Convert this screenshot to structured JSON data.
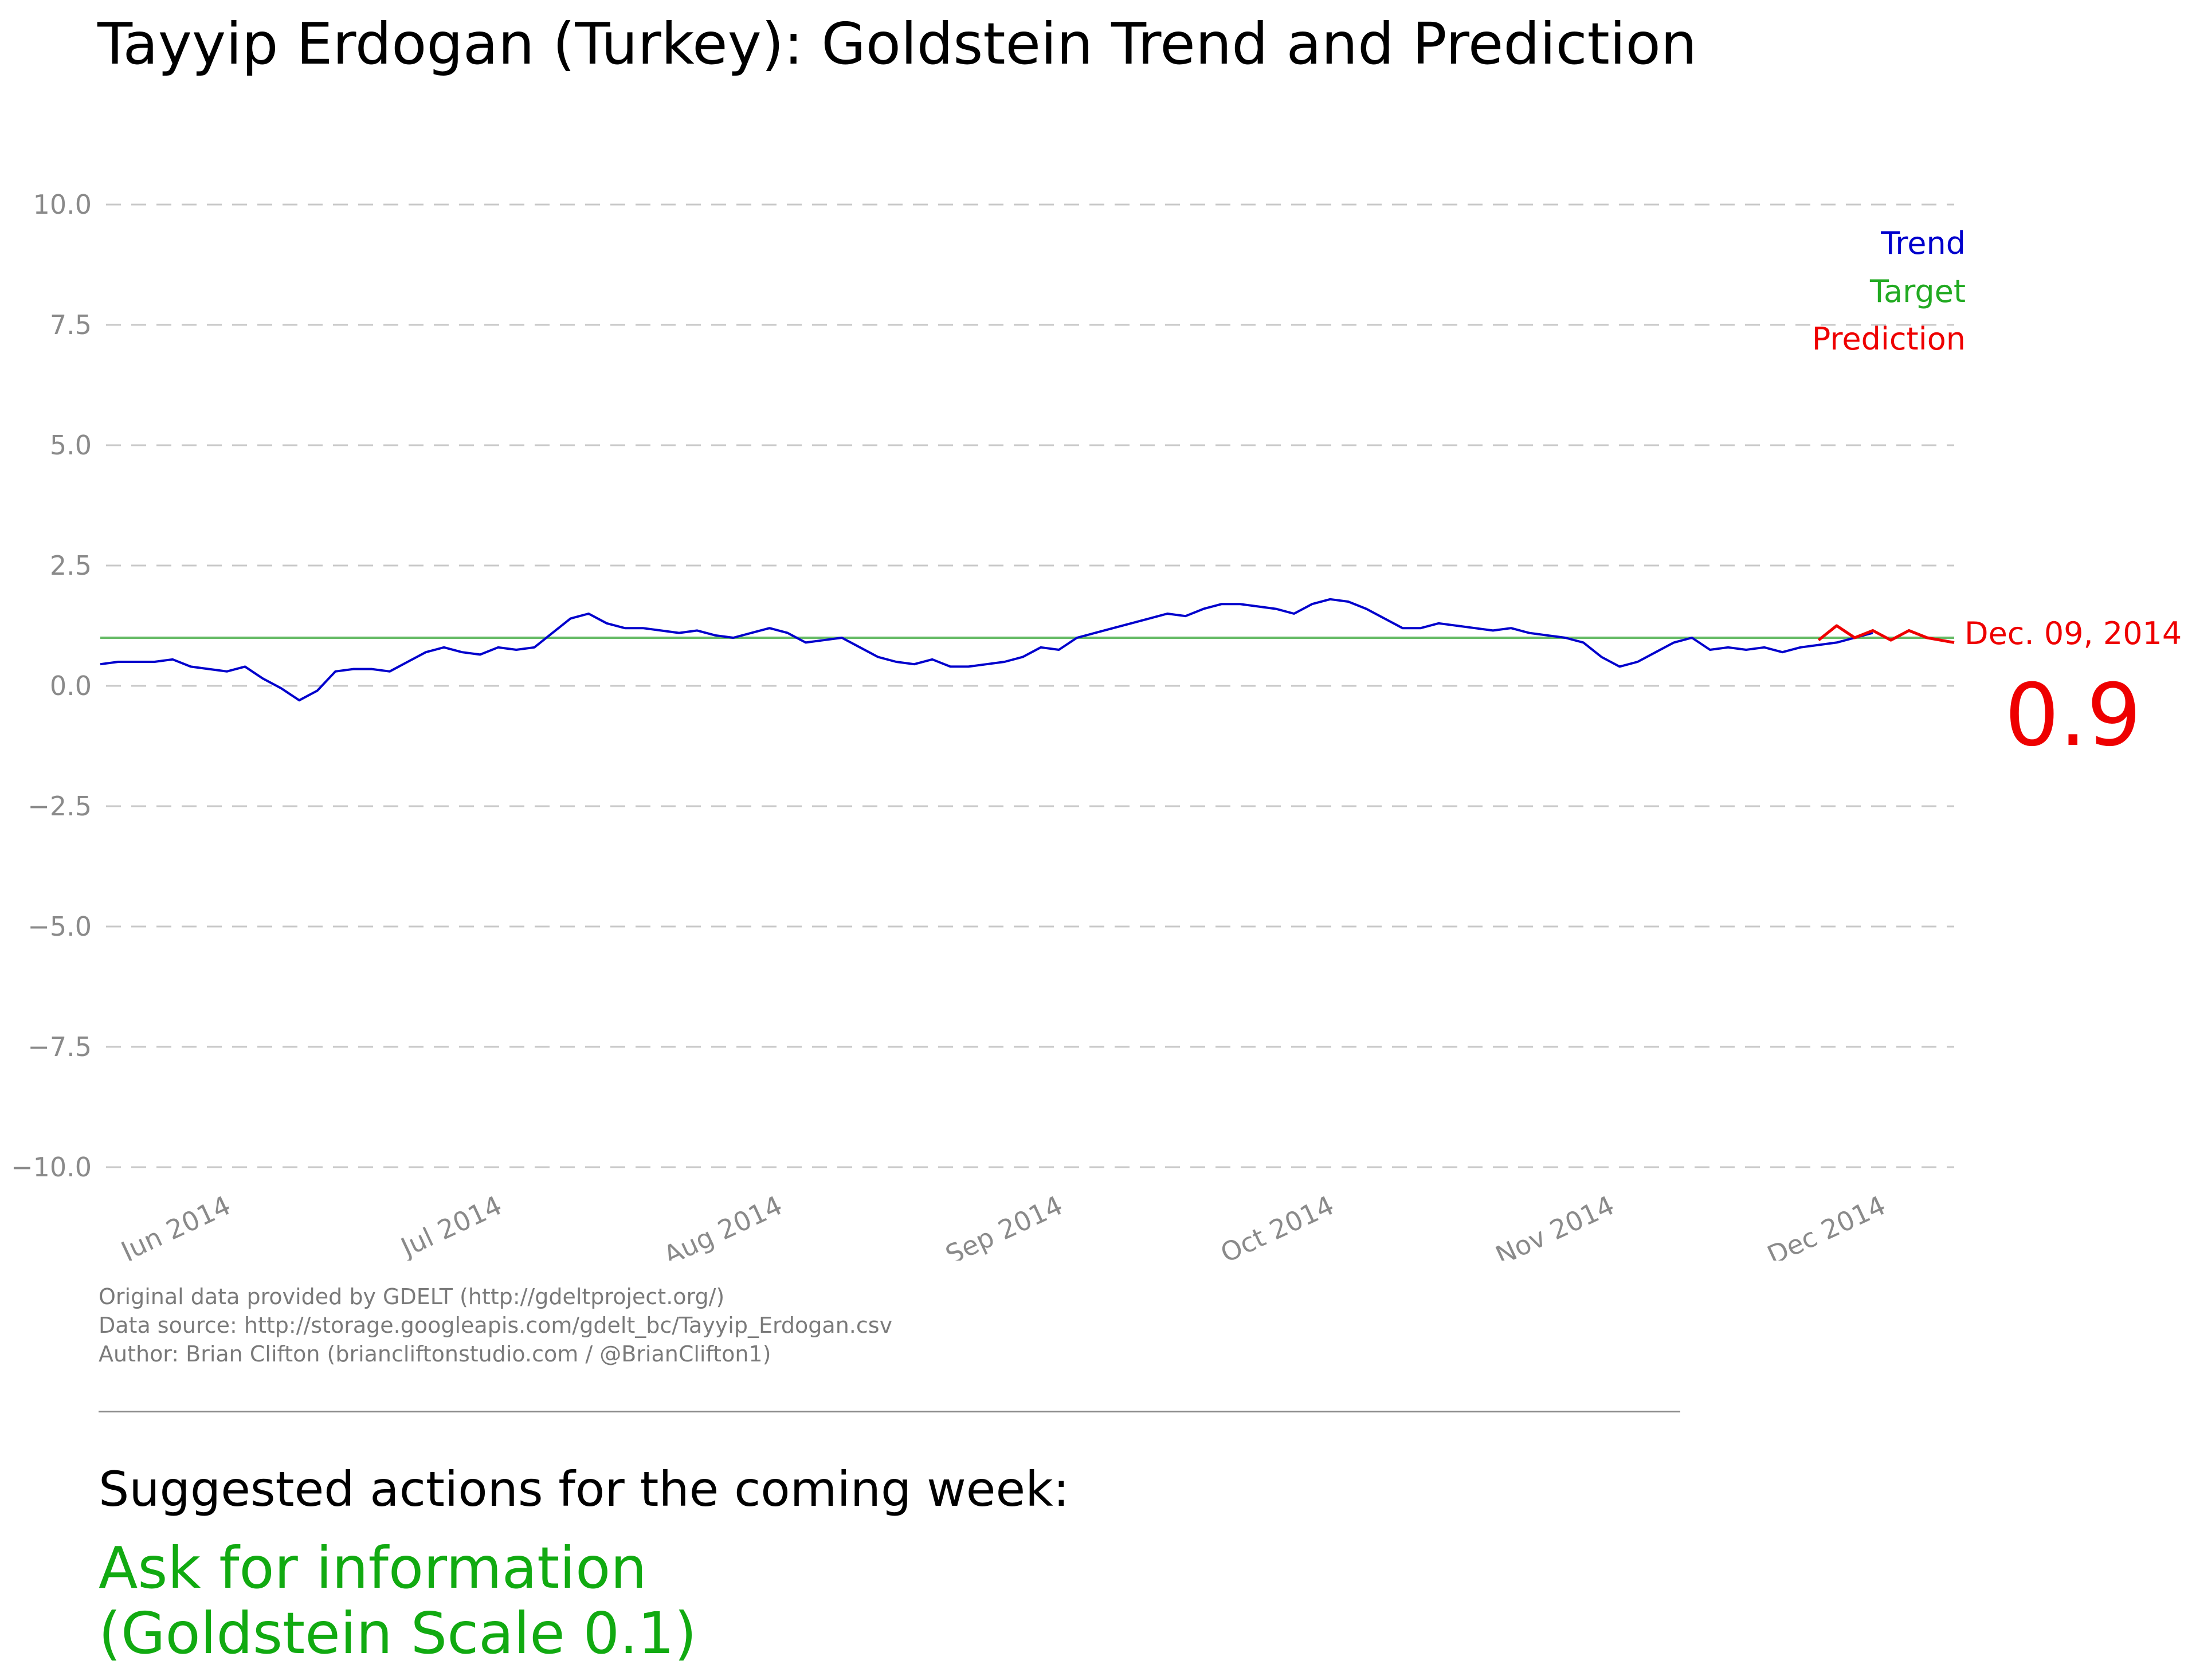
{
  "title": "Tayyip Erdogan (Turkey): Goldstein Trend and Prediction",
  "colors": {
    "trend": "#0000cc",
    "target": "#66bb66",
    "prediction": "#ee0000",
    "action": "#11aa11",
    "grid": "#c8c8c8",
    "tick": "#8a8a8a"
  },
  "chart_data": {
    "type": "line",
    "title": "Tayyip Erdogan (Turkey): Goldstein Trend and Prediction",
    "xlabel": "",
    "ylabel": "",
    "ylim": [
      -10,
      10
    ],
    "yticks": [
      10,
      7.5,
      5,
      2.5,
      0,
      -2.5,
      -5,
      -7.5,
      -10
    ],
    "ytick_labels": [
      "10.0",
      "7.5",
      "5.0",
      "2.5",
      "0.0",
      "−2.5",
      "−5.0",
      "−7.5",
      "−10.0"
    ],
    "xlim": [
      "2014-05-18",
      "2014-12-09"
    ],
    "xticks": [
      "2014-06-01",
      "2014-07-01",
      "2014-08-01",
      "2014-09-01",
      "2014-10-01",
      "2014-11-01",
      "2014-12-01"
    ],
    "xtick_labels": [
      "Jun 2014",
      "Jul 2014",
      "Aug 2014",
      "Sep 2014",
      "Oct 2014",
      "Nov 2014",
      "Dec 2014"
    ],
    "grid": "horizontal dashed",
    "legend_position": "top-right",
    "legend": [
      "Trend",
      "Target",
      "Prediction"
    ],
    "series": [
      {
        "name": "Trend",
        "x": [
          "2014-05-18",
          "2014-05-20",
          "2014-05-22",
          "2014-05-24",
          "2014-05-26",
          "2014-05-28",
          "2014-05-30",
          "2014-06-01",
          "2014-06-03",
          "2014-06-05",
          "2014-06-07",
          "2014-06-09",
          "2014-06-11",
          "2014-06-13",
          "2014-06-15",
          "2014-06-17",
          "2014-06-19",
          "2014-06-21",
          "2014-06-23",
          "2014-06-25",
          "2014-06-27",
          "2014-06-29",
          "2014-07-01",
          "2014-07-03",
          "2014-07-05",
          "2014-07-07",
          "2014-07-09",
          "2014-07-11",
          "2014-07-13",
          "2014-07-15",
          "2014-07-17",
          "2014-07-19",
          "2014-07-21",
          "2014-07-23",
          "2014-07-25",
          "2014-07-27",
          "2014-07-29",
          "2014-07-31",
          "2014-08-02",
          "2014-08-04",
          "2014-08-06",
          "2014-08-08",
          "2014-08-10",
          "2014-08-12",
          "2014-08-14",
          "2014-08-16",
          "2014-08-18",
          "2014-08-20",
          "2014-08-22",
          "2014-08-24",
          "2014-08-26",
          "2014-08-28",
          "2014-08-30",
          "2014-09-01",
          "2014-09-03",
          "2014-09-05",
          "2014-09-07",
          "2014-09-09",
          "2014-09-11",
          "2014-09-13",
          "2014-09-15",
          "2014-09-17",
          "2014-09-19",
          "2014-09-21",
          "2014-09-23",
          "2014-09-25",
          "2014-09-27",
          "2014-09-29",
          "2014-10-01",
          "2014-10-03",
          "2014-10-05",
          "2014-10-07",
          "2014-10-09",
          "2014-10-11",
          "2014-10-13",
          "2014-10-15",
          "2014-10-17",
          "2014-10-19",
          "2014-10-21",
          "2014-10-23",
          "2014-10-25",
          "2014-10-27",
          "2014-10-29",
          "2014-10-31",
          "2014-11-02",
          "2014-11-04",
          "2014-11-06",
          "2014-11-08",
          "2014-11-10",
          "2014-11-12",
          "2014-11-14",
          "2014-11-16",
          "2014-11-18",
          "2014-11-20",
          "2014-11-22",
          "2014-11-24",
          "2014-11-26",
          "2014-11-28",
          "2014-11-30"
        ],
        "y": [
          0.45,
          0.5,
          0.5,
          0.5,
          0.55,
          0.4,
          0.35,
          0.3,
          0.4,
          0.15,
          -0.05,
          -0.3,
          -0.1,
          0.3,
          0.35,
          0.35,
          0.3,
          0.5,
          0.7,
          0.8,
          0.7,
          0.65,
          0.8,
          0.75,
          0.8,
          1.1,
          1.4,
          1.5,
          1.3,
          1.2,
          1.2,
          1.15,
          1.1,
          1.15,
          1.05,
          1.0,
          1.1,
          1.2,
          1.1,
          0.9,
          0.95,
          1.0,
          0.8,
          0.6,
          0.5,
          0.45,
          0.55,
          0.4,
          0.4,
          0.45,
          0.5,
          0.6,
          0.8,
          0.75,
          1.0,
          1.1,
          1.2,
          1.3,
          1.4,
          1.5,
          1.45,
          1.6,
          1.7,
          1.7,
          1.65,
          1.6,
          1.5,
          1.7,
          1.8,
          1.75,
          1.6,
          1.4,
          1.2,
          1.2,
          1.3,
          1.25,
          1.2,
          1.15,
          1.2,
          1.1,
          1.05,
          1.0,
          0.9,
          0.6,
          0.4,
          0.5,
          0.7,
          0.9,
          1.0,
          0.75,
          0.8,
          0.75,
          0.8,
          0.7,
          0.8,
          0.85,
          0.9,
          1.0,
          1.1
        ]
      },
      {
        "name": "Target",
        "x": [
          "2014-05-18",
          "2014-12-09"
        ],
        "y": [
          1.0,
          1.0
        ]
      },
      {
        "name": "Prediction",
        "x": [
          "2014-11-24",
          "2014-11-26",
          "2014-11-28",
          "2014-11-30",
          "2014-12-02",
          "2014-12-04",
          "2014-12-06",
          "2014-12-09"
        ],
        "y": [
          0.95,
          1.25,
          1.0,
          1.15,
          0.95,
          1.15,
          1.0,
          0.9
        ]
      }
    ],
    "annotations": [
      {
        "text": "Dec. 09, 2014",
        "x": "2014-12-09",
        "y": 1.0
      },
      {
        "text": "0.9",
        "x": "2014-12-09",
        "y": 0.9
      }
    ]
  },
  "prediction_label": {
    "date": "Dec. 09, 2014",
    "value": "0.9"
  },
  "footer": {
    "lines": [
      "Original data provided by GDELT (http://gdeltproject.org/)",
      "Data source: http://storage.googleapis.com/gdelt_bc/Tayyip_Erdogan.csv",
      "Author: Brian Clifton (briancliftonstudio.com / @BrianClifton1)"
    ]
  },
  "actions": {
    "heading": "Suggested actions for the coming week:",
    "line1": "Ask for information",
    "line2": "(Goldstein Scale 0.1)"
  }
}
